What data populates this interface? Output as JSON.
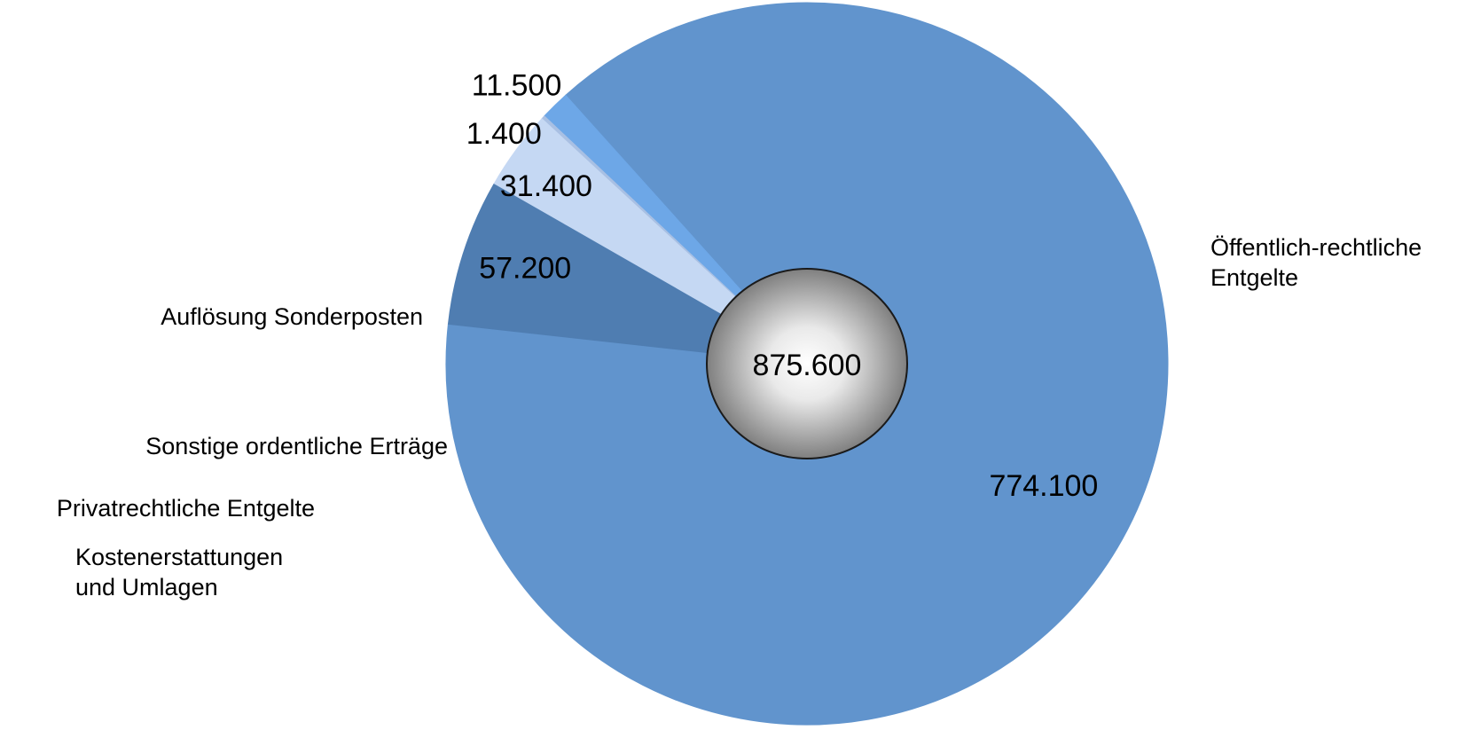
{
  "chart_data": {
    "type": "pie",
    "categories": [
      "Öffentlich-rechtliche Entgelte",
      "Privatrechtliche Entgelte",
      "Kostenerstattungen und Umlagen",
      "Sonstige ordentliche Erträge",
      "Auflösung Sonderposten"
    ],
    "label_lines": [
      [
        "Öffentlich-rechtliche",
        "Entgelte"
      ],
      [
        "Privatrechtliche Entgelte"
      ],
      [
        "Kostenerstattungen",
        "und Umlagen"
      ],
      [
        "Sonstige ordentliche Erträge"
      ],
      [
        "Auflösung Sonderposten"
      ]
    ],
    "values": [
      774100,
      11500,
      1400,
      31400,
      57200
    ],
    "value_labels": [
      "774.100",
      "11.500",
      "1.400",
      "31.400",
      "57.200"
    ],
    "colors": [
      "#6194CD",
      "#6DA7E7",
      "#A9C0E3",
      "#C5D8F3",
      "#4F7DB1"
    ],
    "total": 875600,
    "total_label": "875.600",
    "legend": "none"
  }
}
